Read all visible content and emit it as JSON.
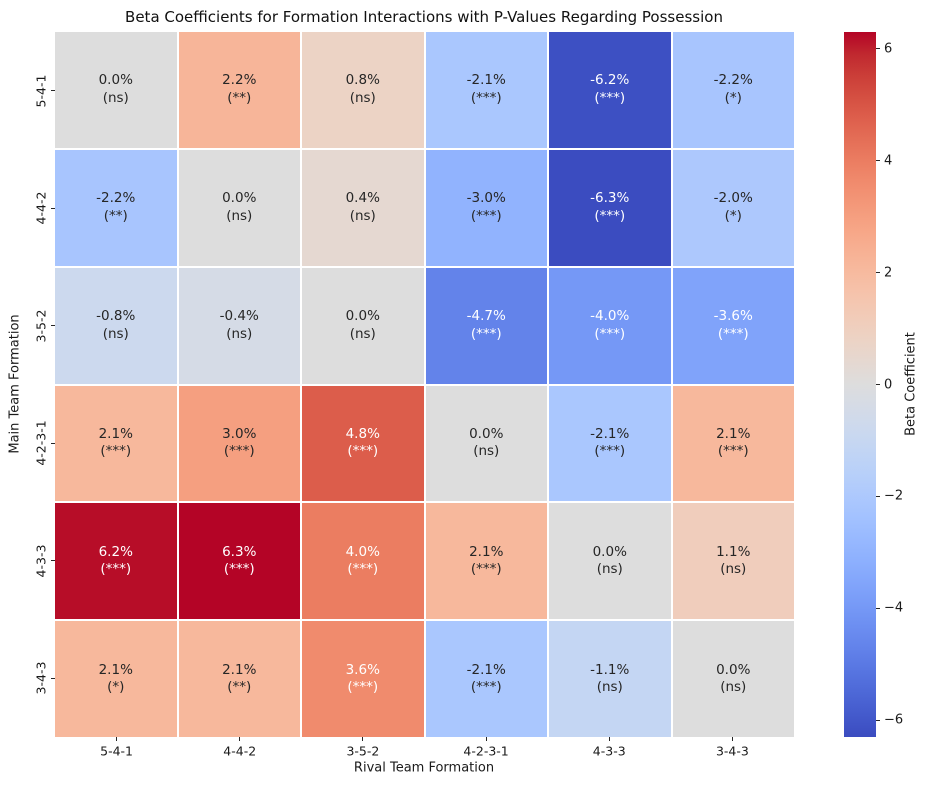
{
  "title": "Beta Coefficients for Formation Interactions with P-Values Regarding Possession",
  "chart_data": {
    "type": "heatmap",
    "title": "Beta Coefficients for Formation Interactions with P-Values Regarding Possession",
    "xlabel": "Rival Team Formation",
    "ylabel": "Main Team Formation",
    "x_categories": [
      "5-4-1",
      "4-4-2",
      "3-5-2",
      "4-2-3-1",
      "4-3-3",
      "3-4-3"
    ],
    "y_categories": [
      "5-4-1",
      "4-4-2",
      "3-5-2",
      "4-2-3-1",
      "4-3-3",
      "3-4-3"
    ],
    "vmin": -6.3,
    "vmax": 6.3,
    "grid_line_color": "#ffffff",
    "annot_dark_color": "#262626",
    "annot_light_color": "#ffffff",
    "rows": [
      {
        "y": "5-4-1",
        "cells": [
          {
            "v": 0.0,
            "pct": "0.0%",
            "sig": "(ns)",
            "color": "#dddddd",
            "light": false
          },
          {
            "v": 2.2,
            "pct": "2.2%",
            "sig": "(**)",
            "color": "#f7b599",
            "light": false
          },
          {
            "v": 0.8,
            "pct": "0.8%",
            "sig": "(ns)",
            "color": "#ecd3c5",
            "light": false
          },
          {
            "v": -2.1,
            "pct": "-2.1%",
            "sig": "(***)",
            "color": "#aac7fe",
            "light": false
          },
          {
            "v": -6.2,
            "pct": "-6.2%",
            "sig": "(***)",
            "color": "#3d50c3",
            "light": true
          },
          {
            "v": -2.2,
            "pct": "-2.2%",
            "sig": "(*)",
            "color": "#a8c5fe",
            "light": false
          }
        ]
      },
      {
        "y": "4-4-2",
        "cells": [
          {
            "v": -2.2,
            "pct": "-2.2%",
            "sig": "(**)",
            "color": "#a8c5fe",
            "light": false
          },
          {
            "v": 0.0,
            "pct": "0.0%",
            "sig": "(ns)",
            "color": "#dddddd",
            "light": false
          },
          {
            "v": 0.4,
            "pct": "0.4%",
            "sig": "(ns)",
            "color": "#e5d8d1",
            "light": false
          },
          {
            "v": -3.0,
            "pct": "-3.0%",
            "sig": "(***)",
            "color": "#91b3fe",
            "light": false
          },
          {
            "v": -6.3,
            "pct": "-6.3%",
            "sig": "(***)",
            "color": "#3b4cc0",
            "light": true
          },
          {
            "v": -2.0,
            "pct": "-2.0%",
            "sig": "(*)",
            "color": "#adc8fd",
            "light": false
          }
        ]
      },
      {
        "y": "3-5-2",
        "cells": [
          {
            "v": -0.8,
            "pct": "-0.8%",
            "sig": "(ns)",
            "color": "#ccd9ee",
            "light": false
          },
          {
            "v": -0.4,
            "pct": "-0.4%",
            "sig": "(ns)",
            "color": "#d5dbe6",
            "light": false
          },
          {
            "v": 0.0,
            "pct": "0.0%",
            "sig": "(ns)",
            "color": "#dddddd",
            "light": false
          },
          {
            "v": -4.7,
            "pct": "-4.7%",
            "sig": "(***)",
            "color": "#6383ea",
            "light": true
          },
          {
            "v": -4.0,
            "pct": "-4.0%",
            "sig": "(***)",
            "color": "#7598f6",
            "light": true
          },
          {
            "v": -3.6,
            "pct": "-3.6%",
            "sig": "(***)",
            "color": "#80a3fa",
            "light": true
          }
        ]
      },
      {
        "y": "4-2-3-1",
        "cells": [
          {
            "v": 2.1,
            "pct": "2.1%",
            "sig": "(***)",
            "color": "#f7b89c",
            "light": false
          },
          {
            "v": 3.0,
            "pct": "3.0%",
            "sig": "(***)",
            "color": "#f59f80",
            "light": false
          },
          {
            "v": 4.8,
            "pct": "4.8%",
            "sig": "(***)",
            "color": "#dc5d4b",
            "light": true
          },
          {
            "v": 0.0,
            "pct": "0.0%",
            "sig": "(ns)",
            "color": "#dddddd",
            "light": false
          },
          {
            "v": -2.1,
            "pct": "-2.1%",
            "sig": "(***)",
            "color": "#aac7fe",
            "light": false
          },
          {
            "v": 2.1,
            "pct": "2.1%",
            "sig": "(***)",
            "color": "#f7b89c",
            "light": false
          }
        ]
      },
      {
        "y": "4-3-3",
        "cells": [
          {
            "v": 6.2,
            "pct": "6.2%",
            "sig": "(***)",
            "color": "#b70d28",
            "light": true
          },
          {
            "v": 6.3,
            "pct": "6.3%",
            "sig": "(***)",
            "color": "#b40426",
            "light": true
          },
          {
            "v": 4.0,
            "pct": "4.0%",
            "sig": "(***)",
            "color": "#eb7d61",
            "light": true
          },
          {
            "v": 2.1,
            "pct": "2.1%",
            "sig": "(***)",
            "color": "#f7b89c",
            "light": false
          },
          {
            "v": 0.0,
            "pct": "0.0%",
            "sig": "(ns)",
            "color": "#dddddd",
            "light": false
          },
          {
            "v": 1.1,
            "pct": "1.1%",
            "sig": "(ns)",
            "color": "#f0cdbc",
            "light": false
          }
        ]
      },
      {
        "y": "3-4-3",
        "cells": [
          {
            "v": 2.1,
            "pct": "2.1%",
            "sig": "(*)",
            "color": "#f7b89c",
            "light": false
          },
          {
            "v": 2.1,
            "pct": "2.1%",
            "sig": "(**)",
            "color": "#f7b89c",
            "light": false
          },
          {
            "v": 3.6,
            "pct": "3.6%",
            "sig": "(***)",
            "color": "#f08b6d",
            "light": true
          },
          {
            "v": -2.1,
            "pct": "-2.1%",
            "sig": "(***)",
            "color": "#aac7fe",
            "light": false
          },
          {
            "v": -1.1,
            "pct": "-1.1%",
            "sig": "(ns)",
            "color": "#c4d6f3",
            "light": false
          },
          {
            "v": 0.0,
            "pct": "0.0%",
            "sig": "(ns)",
            "color": "#dddddd",
            "light": false
          }
        ]
      }
    ],
    "colorbar": {
      "label": "Beta Coefficient",
      "ticks": [
        {
          "value": 6,
          "label": "6"
        },
        {
          "value": 4,
          "label": "4"
        },
        {
          "value": 2,
          "label": "2"
        },
        {
          "value": 0,
          "label": "0"
        },
        {
          "value": -2,
          "label": "−2"
        },
        {
          "value": -4,
          "label": "−4"
        },
        {
          "value": -6,
          "label": "−6"
        }
      ],
      "gradient": [
        {
          "pos": 0.0,
          "color": "#b40426"
        },
        {
          "pos": 3.125,
          "color": "#c0282f"
        },
        {
          "pos": 6.25,
          "color": "#cb3e38"
        },
        {
          "pos": 9.375,
          "color": "#d55042"
        },
        {
          "pos": 12.5,
          "color": "#de604d"
        },
        {
          "pos": 15.625,
          "color": "#e57058"
        },
        {
          "pos": 18.75,
          "color": "#ec7f63"
        },
        {
          "pos": 21.875,
          "color": "#f18d6f"
        },
        {
          "pos": 25.0,
          "color": "#f49a7b"
        },
        {
          "pos": 28.125,
          "color": "#f7a687"
        },
        {
          "pos": 31.25,
          "color": "#f7b194"
        },
        {
          "pos": 34.375,
          "color": "#f7bba0"
        },
        {
          "pos": 37.5,
          "color": "#f5c4ad"
        },
        {
          "pos": 40.625,
          "color": "#f1ccb9"
        },
        {
          "pos": 43.75,
          "color": "#ecd3c5"
        },
        {
          "pos": 46.875,
          "color": "#e5d8d1"
        },
        {
          "pos": 50.0,
          "color": "#dddddd"
        },
        {
          "pos": 53.125,
          "color": "#d5dbe6"
        },
        {
          "pos": 56.25,
          "color": "#ccd9ee"
        },
        {
          "pos": 59.375,
          "color": "#c2d5f4"
        },
        {
          "pos": 62.5,
          "color": "#b8d0f9"
        },
        {
          "pos": 65.625,
          "color": "#aec9fd"
        },
        {
          "pos": 68.75,
          "color": "#a3c2ff"
        },
        {
          "pos": 71.875,
          "color": "#98b9ff"
        },
        {
          "pos": 75.0,
          "color": "#8db0fe"
        },
        {
          "pos": 78.125,
          "color": "#82a5fb"
        },
        {
          "pos": 81.25,
          "color": "#779af7"
        },
        {
          "pos": 84.375,
          "color": "#6c8ef1"
        },
        {
          "pos": 87.5,
          "color": "#6282ea"
        },
        {
          "pos": 90.625,
          "color": "#5775e1"
        },
        {
          "pos": 93.75,
          "color": "#4d68d7"
        },
        {
          "pos": 96.875,
          "color": "#445acc"
        },
        {
          "pos": 100.0,
          "color": "#3b4cc0"
        }
      ]
    }
  }
}
